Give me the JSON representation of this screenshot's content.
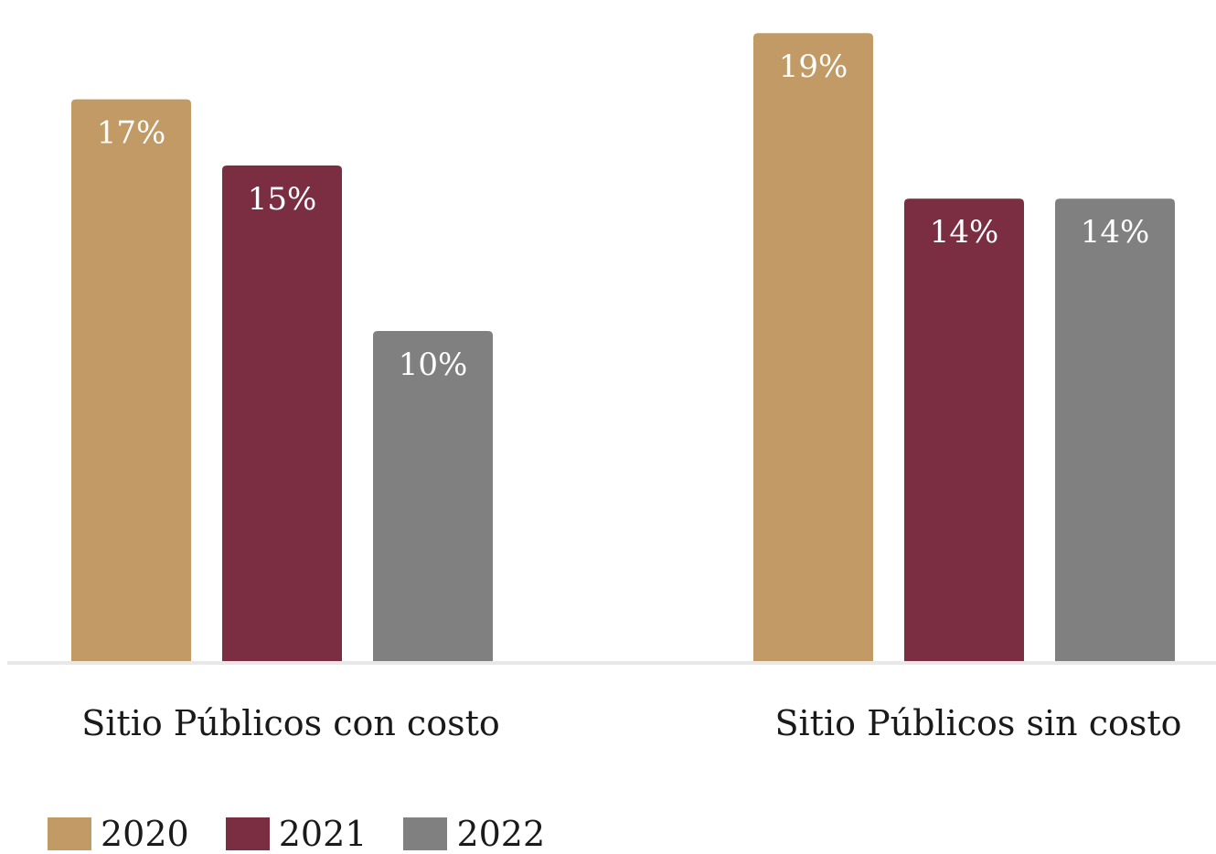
{
  "chart_data": {
    "type": "bar",
    "categories": [
      "Sitio Públicos con costo",
      "Sitio Públicos sin costo"
    ],
    "series": [
      {
        "name": "2020",
        "values": [
          17,
          19
        ],
        "labels": [
          "17%",
          "19%"
        ],
        "color": "#c19a65"
      },
      {
        "name": "2021",
        "values": [
          15,
          14
        ],
        "labels": [
          "15%",
          "14%"
        ],
        "color": "#7b2e42"
      },
      {
        "name": "2022",
        "values": [
          10,
          14
        ],
        "labels": [
          "10%",
          "14%"
        ],
        "color": "#808080"
      }
    ],
    "ylim": [
      0,
      20
    ],
    "unit": "%",
    "grid": false,
    "legend_position": "bottom-left",
    "axis_color": "#e8e8e8"
  }
}
